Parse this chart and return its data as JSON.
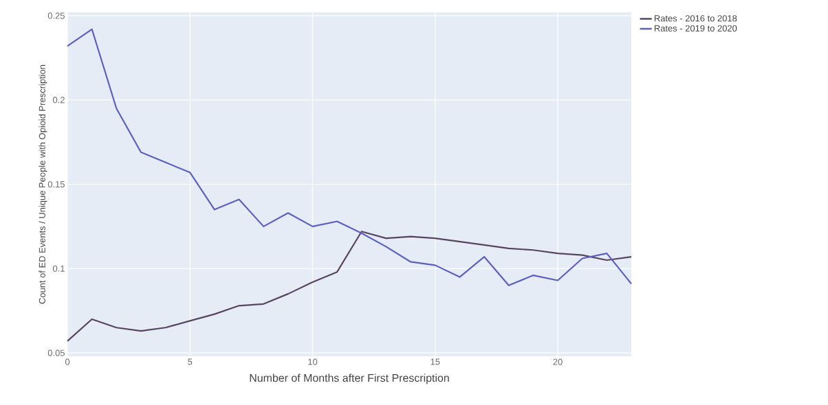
{
  "chart_data": {
    "type": "line",
    "xlabel": "Number of Months after First Prescription",
    "ylabel": "Count of ED Events / Unique People with Opioid Prescription",
    "x": [
      0,
      1,
      2,
      3,
      4,
      5,
      6,
      7,
      8,
      9,
      10,
      11,
      12,
      13,
      14,
      15,
      16,
      17,
      18,
      19,
      20,
      21,
      22,
      23
    ],
    "series": [
      {
        "name": "Rates - 2016 to 2018",
        "color": "#574560",
        "values": [
          0.057,
          0.07,
          0.065,
          0.063,
          0.065,
          0.069,
          0.073,
          0.078,
          0.079,
          0.085,
          0.092,
          0.098,
          0.122,
          0.118,
          0.119,
          0.118,
          0.116,
          0.114,
          0.112,
          0.111,
          0.109,
          0.108,
          0.105,
          0.107
        ]
      },
      {
        "name": "Rates - 2019 to 2020",
        "color": "#5c5fc0",
        "values": [
          0.232,
          0.242,
          0.195,
          0.169,
          0.163,
          0.157,
          0.135,
          0.141,
          0.125,
          0.133,
          0.125,
          0.128,
          0.121,
          0.113,
          0.104,
          0.102,
          0.095,
          0.107,
          0.09,
          0.096,
          0.093,
          0.106,
          0.109,
          0.091
        ]
      }
    ],
    "xlim": [
      0,
      23
    ],
    "ylim": [
      0.048,
      0.252
    ],
    "xticks": [
      0,
      5,
      10,
      15,
      20
    ],
    "yticks": [
      0.05,
      0.1,
      0.15,
      0.2,
      0.25
    ],
    "grid": true,
    "legend": "top right",
    "line_style": "solid"
  }
}
